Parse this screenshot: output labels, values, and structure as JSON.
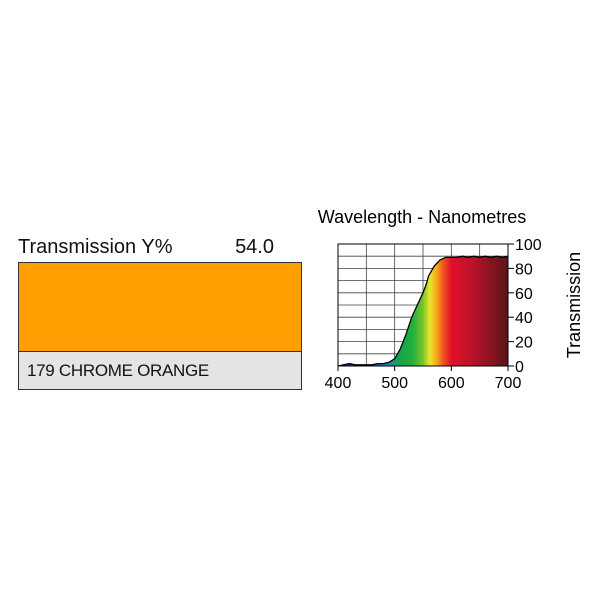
{
  "filter": {
    "transmission_label": "Transmission Y%",
    "transmission_value": "54.0",
    "name": "179 CHROME ORANGE",
    "swatch_color": "#ff9e00"
  },
  "chart_data": {
    "type": "area",
    "title": "Wavelength - Nanometres",
    "xlabel": "",
    "ylabel": "Transmission",
    "xlim": [
      400,
      700
    ],
    "ylim": [
      0,
      100
    ],
    "x_ticks": [
      400,
      500,
      600,
      700
    ],
    "y_ticks": [
      0,
      20,
      40,
      60,
      80,
      100
    ],
    "grid": true,
    "series": [
      {
        "x": [
          400,
          410,
          420,
          430,
          440,
          450,
          460,
          470,
          480,
          490,
          500,
          510,
          520,
          530,
          540,
          550,
          555,
          560,
          570,
          580,
          590,
          600,
          610,
          620,
          630,
          640,
          650,
          660,
          670,
          680,
          690,
          700
        ],
        "y": [
          0,
          1,
          2,
          1,
          1,
          1,
          1,
          2,
          2,
          3,
          6,
          14,
          26,
          40,
          50,
          60,
          66,
          74,
          82,
          87,
          89,
          89,
          89,
          90,
          89,
          90,
          89,
          90,
          89,
          90,
          89,
          90
        ]
      }
    ]
  }
}
